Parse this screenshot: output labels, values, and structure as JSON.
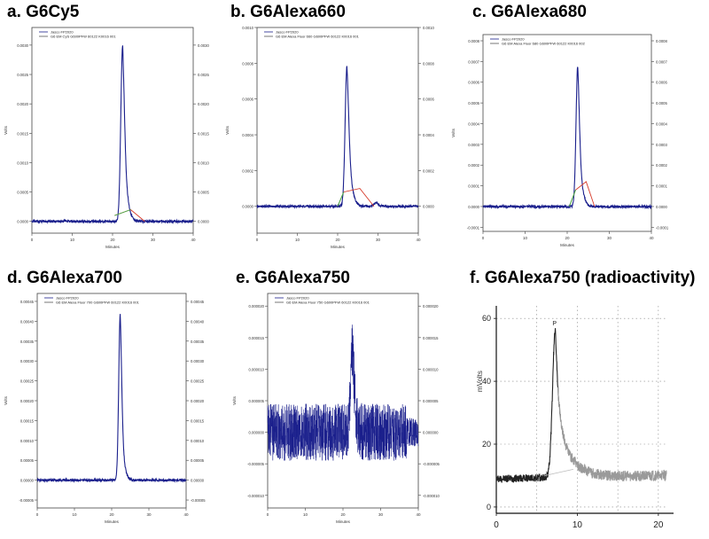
{
  "figure": {
    "panels": [
      {
        "letter": "a.",
        "name": "G6Cy5"
      },
      {
        "letter": "b.",
        "name": "G6Alexa660"
      },
      {
        "letter": "c.",
        "name": "G6Alexa680"
      },
      {
        "letter": "d.",
        "name": "G6Alexa700"
      },
      {
        "letter": "e.",
        "name": "G6Alexa750"
      },
      {
        "letter": "f.",
        "name": "G6Alexa750 (radioactivity)"
      }
    ]
  },
  "colors": {
    "trace": "#1a1f8c",
    "baseline_red": "#d63a2a",
    "baseline_green": "#39b54a",
    "radio_trace": "#222222"
  },
  "chart_data": [
    {
      "type": "line",
      "panel": "a",
      "title": "G6Cy5",
      "xlabel": "Minutes",
      "ylabel": "Volts",
      "xlim": [
        0,
        40
      ],
      "ylim": [
        -0.0002,
        0.0033
      ],
      "xticks": [
        0,
        10,
        20,
        30,
        40
      ],
      "yticks": [
        0.0,
        0.0005,
        0.001,
        0.0015,
        0.002,
        0.0025,
        0.003
      ],
      "ytick_labels": [
        "0.0000",
        "0.0005",
        "0.0010",
        "0.0015",
        "0.0020",
        "0.0025",
        "0.0030"
      ],
      "legend": [
        "Jasco FP2020",
        "G6 EM CyS G600PFW 60122 K0016 001"
      ],
      "peak": {
        "x": 22.5,
        "y": 0.003,
        "width": 0.9,
        "tail": 3.2
      },
      "baseline": 0.0,
      "noise": 2e-05,
      "integration_line": [
        [
          20.5,
          0.0001
        ],
        [
          24.5,
          0.0002
        ],
        [
          28,
          0.0
        ]
      ]
    },
    {
      "type": "line",
      "panel": "b",
      "title": "G6Alexa660",
      "xlabel": "Minutes",
      "ylabel": "Volts",
      "xlim": [
        0,
        40
      ],
      "ylim": [
        -0.00015,
        0.001
      ],
      "xticks": [
        0,
        10,
        20,
        30,
        40
      ],
      "yticks": [
        0.0,
        0.0002,
        0.0004,
        0.0006,
        0.0008,
        0.001
      ],
      "ytick_labels": [
        "0.0000",
        "0.0002",
        "0.0004",
        "0.0006",
        "0.0008",
        "0.0010"
      ],
      "legend": [
        "Jasco FP2020",
        "G6 EM Alexa Fluor 660 G600PFW 60122 K0016 001"
      ],
      "peak": {
        "x": 22.3,
        "y": 0.00078,
        "width": 0.9,
        "tail": 3.4
      },
      "secondary_peak": {
        "x": 29.5,
        "y": 2e-05
      },
      "baseline": 0.0,
      "noise": 6e-06,
      "integration_line": [
        [
          20.0,
          0.0
        ],
        [
          21.5,
          8e-05
        ],
        [
          25.5,
          0.0001
        ],
        [
          29,
          0.0
        ]
      ]
    },
    {
      "type": "line",
      "panel": "c",
      "title": "G6Alexa680",
      "xlabel": "Minutes",
      "ylabel": "Volts",
      "xlim": [
        0,
        40
      ],
      "ylim": [
        -0.00012,
        0.00083
      ],
      "xticks": [
        0,
        10,
        20,
        30,
        40
      ],
      "yticks": [
        -0.0001,
        0.0,
        0.0001,
        0.0002,
        0.0003,
        0.0004,
        0.0005,
        0.0006,
        0.0007,
        0.0008
      ],
      "ytick_labels": [
        "-0.0001",
        "0.0000",
        "0.0001",
        "0.0002",
        "0.0003",
        "0.0004",
        "0.0005",
        "0.0006",
        "0.0007",
        "0.0008"
      ],
      "legend": [
        "Jasco FP2020",
        "G6 EM Alexa Fluor 680 G600PFW 60122 K0016 002"
      ],
      "peak": {
        "x": 22.5,
        "y": 0.00068,
        "width": 0.8,
        "tail": 2.8
      },
      "baseline": 0.0,
      "noise": 6e-06,
      "integration_line": [
        [
          20.5,
          0.0
        ],
        [
          22.0,
          8e-05
        ],
        [
          24.5,
          0.00012
        ],
        [
          26.5,
          0.0
        ]
      ]
    },
    {
      "type": "line",
      "panel": "d",
      "title": "G6Alexa700",
      "xlabel": "Minutes",
      "ylabel": "Volts",
      "xlim": [
        0,
        40
      ],
      "ylim": [
        -7e-05,
        0.00047
      ],
      "xticks": [
        0,
        10,
        20,
        30,
        40
      ],
      "yticks": [
        -5e-05,
        0.0,
        5e-05,
        0.0001,
        0.00015,
        0.0002,
        0.00025,
        0.0003,
        0.00035,
        0.0004,
        0.00045
      ],
      "ytick_labels": [
        "-0.00005",
        "0.00000",
        "0.00005",
        "0.00010",
        "0.00015",
        "0.00020",
        "0.00025",
        "0.00030",
        "0.00035",
        "0.00040",
        "0.00045"
      ],
      "legend": [
        "Jasco FP2020",
        "G6 EM Alexa Fluor 700 G600PFW 60122 K0016 001"
      ],
      "peak": {
        "x": 22.3,
        "y": 0.00042,
        "width": 0.8,
        "tail": 2.4
      },
      "baseline": 0.0,
      "noise": 3e-06
    },
    {
      "type": "line",
      "panel": "e",
      "title": "G6Alexa750",
      "xlabel": "Minutes",
      "ylabel": "Volts",
      "xlim": [
        0,
        40
      ],
      "ylim": [
        -1.2e-05,
        2.2e-05
      ],
      "xticks": [
        0,
        10,
        20,
        30,
        40
      ],
      "yticks": [
        -1e-05,
        -5e-06,
        0.0,
        5e-06,
        1e-05,
        1.5e-05,
        2e-05
      ],
      "ytick_labels": [
        "-0.000010",
        "-0.000005",
        "0.000000",
        "0.000005",
        "0.000010",
        "0.000015",
        "0.000020"
      ],
      "legend": [
        "Jasco FP2020",
        "G6 EM Alexa Fluor 750 G600PFW 60122 K0016 001"
      ],
      "peak": {
        "x": 22.5,
        "y": 1.3e-05,
        "width": 1.0,
        "tail": 2.5
      },
      "baseline": 0.0,
      "noise": 4.5e-06
    },
    {
      "type": "line",
      "panel": "f",
      "title": "G6Alexa750 (radioactivity)",
      "xlabel": "",
      "ylabel": "mVolts",
      "xlim": [
        0,
        21
      ],
      "ylim": [
        -2,
        64
      ],
      "xticks": [
        0,
        10,
        20
      ],
      "yticks": [
        0,
        20,
        40,
        60
      ],
      "ytick_labels": [
        "0",
        "20",
        "40",
        "60"
      ],
      "peak": {
        "x": 7.3,
        "y": 57,
        "width": 0.4,
        "tail": 1.8
      },
      "baseline_start": 9,
      "baseline_end": 10,
      "noise": 1.2,
      "peak_marker": "P"
    }
  ]
}
